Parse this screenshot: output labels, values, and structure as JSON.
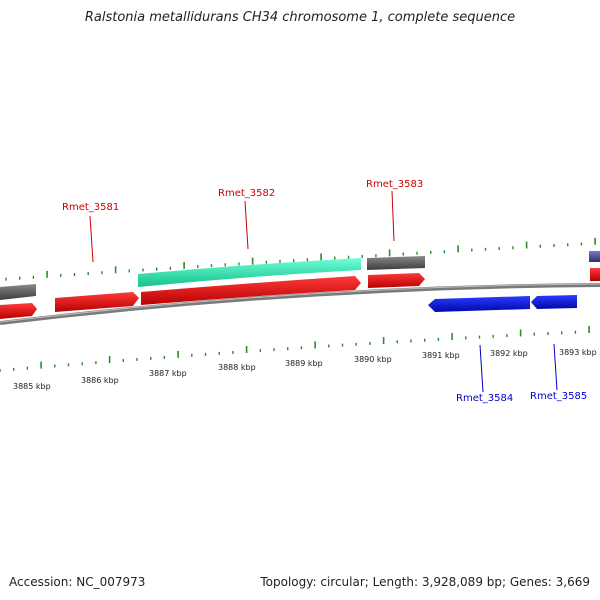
{
  "title": "Ralstonia metallidurans CH34 chromosome 1, complete sequence",
  "footer": {
    "accession": "Accession: NC_007973",
    "summary": "Topology: circular; Length: 3,928,089 bp; Genes: 3,669"
  },
  "colors": {
    "backbone": "#8a8a8a",
    "tick": "#2e8b2e",
    "forward_gene": "#e00000",
    "reverse_gene": "#0a14d8",
    "highlight_feature": "#2ee8b0",
    "grey_feature": "#5e5e5e",
    "edge_feature": "#4b4b9a",
    "label_forward": "#cc0000",
    "label_reverse": "#0000cc"
  },
  "scale_labels": [
    "3885 kbp",
    "3886 kbp",
    "3887 kbp",
    "3888 kbp",
    "3889 kbp",
    "3890 kbp",
    "3891 kbp",
    "3892 kbp",
    "3893 kbp"
  ],
  "gene_labels": [
    {
      "name": "Rmet_3581",
      "strand": "forward"
    },
    {
      "name": "Rmet_3582",
      "strand": "forward"
    },
    {
      "name": "Rmet_3583",
      "strand": "forward"
    },
    {
      "name": "Rmet_3584",
      "strand": "reverse"
    },
    {
      "name": "Rmet_3585",
      "strand": "reverse"
    }
  ]
}
